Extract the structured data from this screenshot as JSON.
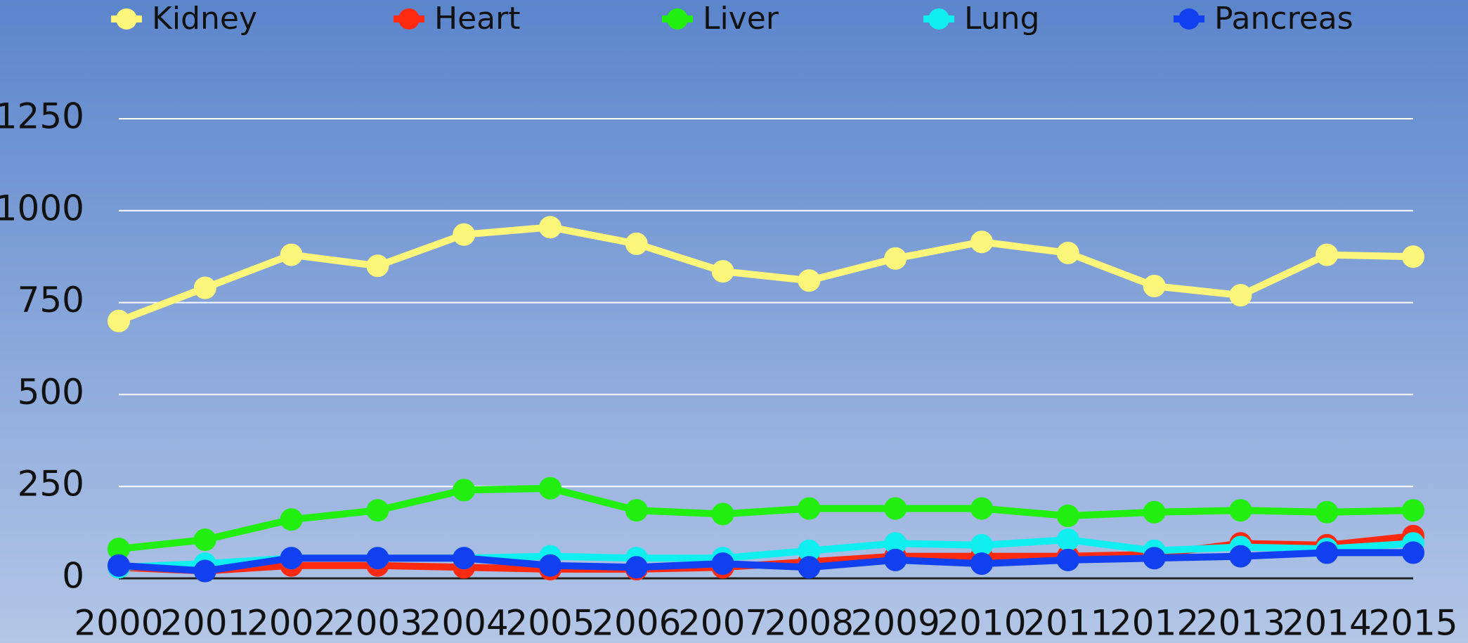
{
  "chart_data": {
    "type": "line",
    "categories": [
      "2000",
      "2001",
      "2002",
      "2003",
      "2004",
      "2005",
      "2006",
      "2007",
      "2008",
      "2009",
      "2010",
      "2011",
      "2012",
      "2013",
      "2014",
      "2015"
    ],
    "series": [
      {
        "name": "Kidney",
        "color": "#fbf57a",
        "values": [
          700,
          790,
          880,
          850,
          935,
          955,
          910,
          835,
          810,
          870,
          915,
          885,
          795,
          770,
          880,
          875
        ]
      },
      {
        "name": "Heart",
        "color": "#ff2a10",
        "values": [
          30,
          20,
          35,
          35,
          30,
          25,
          25,
          30,
          45,
          60,
          60,
          60,
          65,
          95,
          90,
          115
        ]
      },
      {
        "name": "Liver",
        "color": "#22ee10",
        "values": [
          80,
          105,
          160,
          185,
          240,
          245,
          185,
          175,
          190,
          190,
          190,
          170,
          180,
          185,
          180,
          185
        ]
      },
      {
        "name": "Lung",
        "color": "#10eef0",
        "values": [
          30,
          40,
          55,
          55,
          55,
          60,
          55,
          55,
          75,
          95,
          90,
          105,
          75,
          85,
          80,
          95
        ]
      },
      {
        "name": "Pancreas",
        "color": "#1040f0",
        "values": [
          35,
          20,
          55,
          55,
          55,
          35,
          30,
          40,
          30,
          50,
          40,
          50,
          55,
          60,
          70,
          70
        ]
      }
    ],
    "ylim": [
      0,
      1250
    ],
    "yticks": [
      0,
      250,
      500,
      750,
      1000,
      1250
    ],
    "grid": true,
    "legend": "top"
  }
}
